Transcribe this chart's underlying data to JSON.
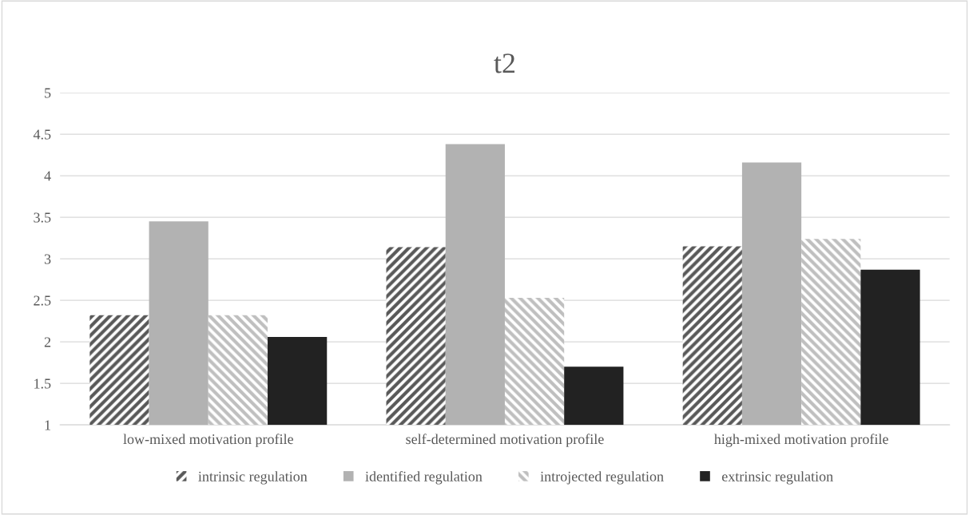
{
  "chart_data": {
    "type": "bar",
    "title": "t2",
    "categories": [
      "low-mixed motivation profile",
      "self-determined motivation profile",
      "high-mixed motivation profile"
    ],
    "series": [
      {
        "name": "intrinsic regulation",
        "color": "#595959",
        "values": [
          2.32,
          3.14,
          3.15
        ]
      },
      {
        "name": "identified regulation",
        "color": "#b2b2b2",
        "values": [
          3.45,
          4.38,
          4.16
        ]
      },
      {
        "name": "introjected regulation",
        "color": "#bfbfbf",
        "values": [
          2.32,
          2.53,
          3.24
        ]
      },
      {
        "name": "extrinsic regulation",
        "color": "#222222",
        "values": [
          2.06,
          1.7,
          2.87
        ]
      }
    ],
    "ylim": [
      1,
      5
    ],
    "yticks": [
      1,
      1.5,
      2,
      2.5,
      3,
      3.5,
      4,
      4.5,
      5
    ],
    "grid": "y",
    "legend": "bottom"
  }
}
